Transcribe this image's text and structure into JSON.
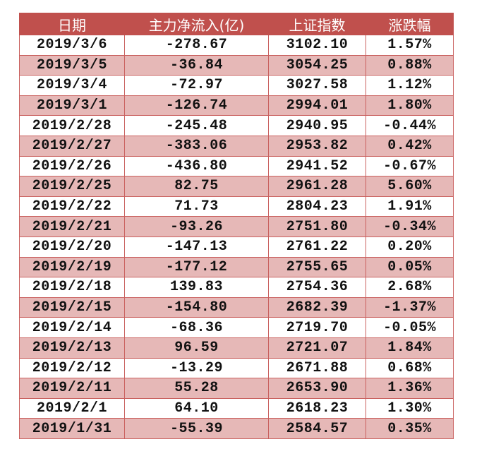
{
  "table": {
    "headers": [
      "日期",
      "主力净流入(亿)",
      "上证指数",
      "涨跌幅"
    ],
    "rows": [
      [
        "2019/3/6",
        "-278.67",
        "3102.10",
        "1.57%"
      ],
      [
        "2019/3/5",
        "-36.84",
        "3054.25",
        "0.88%"
      ],
      [
        "2019/3/4",
        "-72.97",
        "3027.58",
        "1.12%"
      ],
      [
        "2019/3/1",
        "-126.74",
        "2994.01",
        "1.80%"
      ],
      [
        "2019/2/28",
        "-245.48",
        "2940.95",
        "-0.44%"
      ],
      [
        "2019/2/27",
        "-383.06",
        "2953.82",
        "0.42%"
      ],
      [
        "2019/2/26",
        "-436.80",
        "2941.52",
        "-0.67%"
      ],
      [
        "2019/2/25",
        "82.75",
        "2961.28",
        "5.60%"
      ],
      [
        "2019/2/22",
        "71.73",
        "2804.23",
        "1.91%"
      ],
      [
        "2019/2/21",
        "-93.26",
        "2751.80",
        "-0.34%"
      ],
      [
        "2019/2/20",
        "-147.13",
        "2761.22",
        "0.20%"
      ],
      [
        "2019/2/19",
        "-177.12",
        "2755.65",
        "0.05%"
      ],
      [
        "2019/2/18",
        "139.83",
        "2754.36",
        "2.68%"
      ],
      [
        "2019/2/15",
        "-154.80",
        "2682.39",
        "-1.37%"
      ],
      [
        "2019/2/14",
        "-68.36",
        "2719.70",
        "-0.05%"
      ],
      [
        "2019/2/13",
        "96.59",
        "2721.07",
        "1.84%"
      ],
      [
        "2019/2/12",
        "-13.29",
        "2671.88",
        "0.68%"
      ],
      [
        "2019/2/11",
        "55.28",
        "2653.90",
        "1.36%"
      ],
      [
        "2019/2/1",
        "64.10",
        "2618.23",
        "1.30%"
      ],
      [
        "2019/1/31",
        "-55.39",
        "2584.57",
        "0.35%"
      ]
    ]
  },
  "colors": {
    "header": "#c0504d",
    "alt_row": "#e6b8b7",
    "border": "#c9605e"
  }
}
